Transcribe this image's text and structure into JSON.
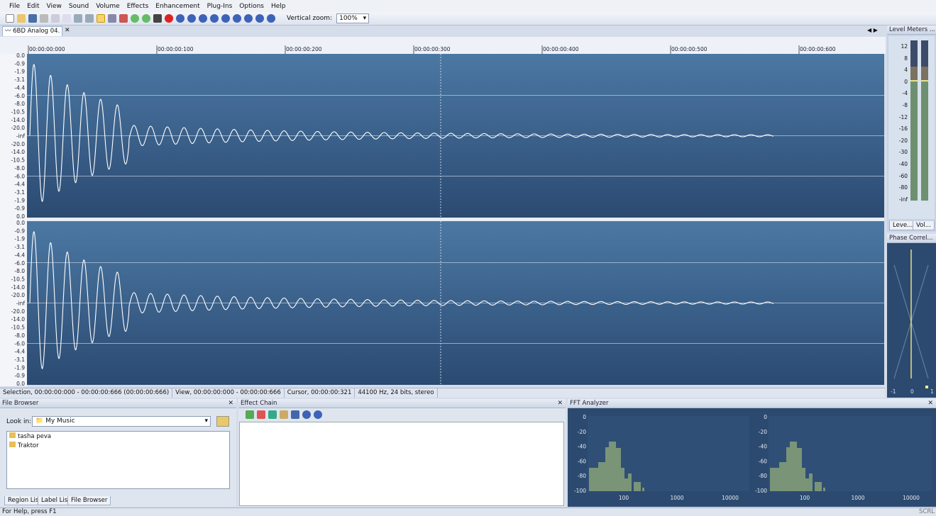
{
  "menu": [
    "File",
    "Edit",
    "View",
    "Sound",
    "Volume",
    "Effects",
    "Enhancement",
    "Plug-Ins",
    "Options",
    "Help"
  ],
  "toolbar": {
    "zoom_label": "Vertical zoom:",
    "zoom_value": "100%"
  },
  "document_tab": "6BD Analog 04.",
  "timeline": [
    "00:00:00:000",
    "00:00:00:100",
    "00:00:00:200",
    "00:00:00:300",
    "00:00:00:400",
    "00:00:00:500",
    "00:00:00:600"
  ],
  "amplitude_labels": [
    "0.0",
    "-0.9",
    "-1.9",
    "-3.1",
    "-4.4",
    "-6.0",
    "-8.0",
    "-10.5",
    "-14.0",
    "-20.0",
    "-inf",
    "-20.0",
    "-14.0",
    "-10.5",
    "-8.0",
    "-6.0",
    "-4.4",
    "-3.1",
    "-1.9",
    "-0.9",
    "0.0"
  ],
  "status": [
    "Selection, 00:00:00:000 - 00:00:00:666 (00:00:00:666)",
    "View, 00:00:00:000 - 00:00:00:666",
    "Cursor, 00:00:00:321",
    "44100 Hz, 24 bits, stereo"
  ],
  "level_meters": {
    "title": "Level Meters ...",
    "scale": [
      "12",
      "8",
      "4",
      "0",
      "-4",
      "-8",
      "-12",
      "-16",
      "-20",
      "-30",
      "-40",
      "-60",
      "-80",
      "-inf"
    ],
    "tabs": [
      "Leve...",
      "Vol..."
    ]
  },
  "phase": {
    "title": "Phase Correl...",
    "labels": [
      "-1",
      "0",
      "1"
    ]
  },
  "file_browser": {
    "title": "File Browser",
    "look_in": "Look in:",
    "folder": "My Music",
    "items": [
      "tasha peva",
      "Traktor"
    ],
    "tabs": [
      "Region List",
      "Label List",
      "File Browser"
    ]
  },
  "effect_chain": {
    "title": "Effect Chain"
  },
  "fft": {
    "title": "FFT Analyzer",
    "y_labels": [
      "0",
      "-20",
      "-40",
      "-60",
      "-80",
      "-100"
    ],
    "x_labels": [
      "100",
      "1000",
      "10000"
    ]
  },
  "footer": {
    "help": "For Help, press F1",
    "scrl": "SCRL"
  }
}
